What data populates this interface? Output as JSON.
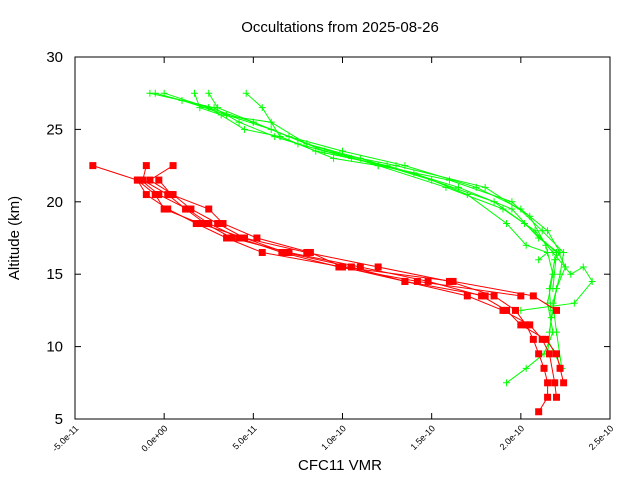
{
  "chart_data": {
    "type": "line",
    "title": "Occultations from 2025-08-26",
    "xlabel": "CFC11 VMR",
    "ylabel": "Altitude (km)",
    "xlim": [
      -5e-11,
      2.5e-10
    ],
    "ylim": [
      5,
      30
    ],
    "xticks": [
      {
        "value": -5e-11,
        "label": "-5.0e-11"
      },
      {
        "value": 0,
        "label": "0.0e+00"
      },
      {
        "value": 5e-11,
        "label": "5.0e-11"
      },
      {
        "value": 1e-10,
        "label": "1.0e-10"
      },
      {
        "value": 1.5e-10,
        "label": "1.5e-10"
      },
      {
        "value": 2e-10,
        "label": "2.0e-10"
      },
      {
        "value": 2.5e-10,
        "label": "2.5e-10"
      }
    ],
    "yticks": [
      5,
      10,
      15,
      20,
      25,
      30
    ],
    "grid": false,
    "legend": "none",
    "colors": {
      "red_series": "#ff0000",
      "green_series": "#00ff00"
    },
    "series": [
      {
        "color": "red",
        "marker": "square",
        "points": [
          [
            2.1e-10,
            5.5
          ],
          [
            2.15e-10,
            6.5
          ],
          [
            2.15e-10,
            7.5
          ],
          [
            2.13e-10,
            8.5
          ],
          [
            2.1e-10,
            9.5
          ],
          [
            2.07e-10,
            10.5
          ],
          [
            2.03e-10,
            11.5
          ],
          [
            1.97e-10,
            12.5
          ],
          [
            1.85e-10,
            13.5
          ],
          [
            1.6e-10,
            14.5
          ],
          [
            1.2e-10,
            15.5
          ],
          [
            8e-11,
            16.5
          ],
          [
            4.5e-11,
            17.5
          ],
          [
            3e-11,
            18.5
          ],
          [
            1.5e-11,
            19.5
          ],
          [
            5e-12,
            20.5
          ],
          [
            -8e-12,
            21.5
          ],
          [
            5e-12,
            22.5
          ]
        ]
      },
      {
        "color": "red",
        "marker": "square",
        "points": [
          [
            2.2e-10,
            6.5
          ],
          [
            2.19e-10,
            7.5
          ],
          [
            2.16e-10,
            9.5
          ],
          [
            2.12e-10,
            10.5
          ],
          [
            2.05e-10,
            11.5
          ],
          [
            1.9e-10,
            12.5
          ],
          [
            1.7e-10,
            13.5
          ],
          [
            1.35e-10,
            14.5
          ],
          [
            1.05e-10,
            15.5
          ],
          [
            6.8e-11,
            16.5
          ],
          [
            4.5e-11,
            17.5
          ],
          [
            2e-11,
            18.5
          ],
          [
            0,
            19.5
          ],
          [
            -5e-12,
            20.5
          ],
          [
            -1.5e-11,
            21.5
          ],
          [
            -4e-11,
            22.5
          ]
        ]
      },
      {
        "color": "red",
        "marker": "square",
        "points": [
          [
            2.22e-10,
            8.5
          ],
          [
            2.24e-10,
            7.5
          ],
          [
            2.2e-10,
            9.5
          ],
          [
            2.14e-10,
            10.5
          ],
          [
            2e-10,
            11.5
          ],
          [
            1.92e-10,
            12.5
          ],
          [
            1.78e-10,
            13.5
          ],
          [
            1.48e-10,
            14.5
          ],
          [
            1.1e-10,
            15.5
          ],
          [
            7e-11,
            16.5
          ],
          [
            3.8e-11,
            17.5
          ],
          [
            2.3e-11,
            18.5
          ],
          [
            1.2e-11,
            19.5
          ],
          [
            2e-12,
            20.5
          ],
          [
            -1.2e-11,
            21.5
          ],
          [
            -1e-11,
            22.5
          ]
        ]
      },
      {
        "color": "red",
        "marker": "square",
        "points": [
          [
            2.2e-10,
            12.5
          ],
          [
            2.07e-10,
            13.5
          ],
          [
            1.62e-10,
            14.5
          ],
          [
            1e-10,
            15.5
          ],
          [
            5.5e-11,
            16.5
          ],
          [
            3.5e-11,
            17.5
          ],
          [
            1.8e-11,
            18.5
          ],
          [
            2e-12,
            19.5
          ],
          [
            -1e-11,
            20.5
          ],
          [
            -1.5e-11,
            21.5
          ]
        ]
      },
      {
        "color": "red",
        "marker": "square",
        "points": [
          [
            2e-10,
            13.5
          ],
          [
            1.42e-10,
            14.5
          ],
          [
            9.8e-11,
            15.5
          ],
          [
            6.6e-11,
            16.5
          ],
          [
            4.2e-11,
            17.5
          ],
          [
            2.5e-11,
            18.5
          ],
          [
            1.3e-11,
            19.5
          ],
          [
            -3e-12,
            20.5
          ],
          [
            -1.3e-11,
            21.5
          ]
        ]
      },
      {
        "color": "red",
        "marker": "square",
        "points": [
          [
            1.8e-10,
            13.5
          ],
          [
            1.35e-10,
            14.5
          ],
          [
            1e-10,
            15.5
          ],
          [
            8.2e-11,
            16.5
          ],
          [
            5.2e-11,
            17.5
          ],
          [
            3.3e-11,
            18.5
          ],
          [
            2.5e-11,
            19.5
          ],
          [
            4e-12,
            20.5
          ],
          [
            -3e-12,
            21.5
          ]
        ]
      },
      {
        "color": "green",
        "marker": "plus",
        "points": [
          [
            1.92e-10,
            7.5
          ],
          [
            2.03e-10,
            8.5
          ],
          [
            2.13e-10,
            9.5
          ],
          [
            2.18e-10,
            11
          ],
          [
            2.15e-10,
            13
          ],
          [
            2.18e-10,
            15
          ],
          [
            2.14e-10,
            17
          ],
          [
            2.05e-10,
            19
          ],
          [
            1.8e-10,
            21
          ],
          [
            1.3e-10,
            22.5
          ],
          [
            9e-11,
            23.5
          ],
          [
            6e-11,
            25
          ],
          [
            3.5e-11,
            26
          ],
          [
            1e-11,
            27
          ],
          [
            -5e-12,
            27.5
          ]
        ]
      },
      {
        "color": "green",
        "marker": "plus",
        "points": [
          [
            2.15e-10,
            10.5
          ],
          [
            2.23e-10,
            8.5
          ],
          [
            2.2e-10,
            11
          ],
          [
            2.18e-10,
            13
          ],
          [
            2.22e-10,
            15
          ],
          [
            2.24e-10,
            16.5
          ],
          [
            2.12e-10,
            18
          ],
          [
            1.95e-10,
            20
          ],
          [
            1.6e-10,
            21.5
          ],
          [
            1.2e-10,
            22.5
          ],
          [
            8e-11,
            24
          ],
          [
            5e-11,
            25.5
          ],
          [
            2.5e-11,
            26.5
          ],
          [
            0,
            27.5
          ]
        ]
      },
      {
        "color": "green",
        "marker": "plus",
        "points": [
          [
            2.15e-10,
            9.5
          ],
          [
            2.17e-10,
            12
          ],
          [
            2.16e-10,
            14
          ],
          [
            2.19e-10,
            16
          ],
          [
            2.22e-10,
            16.5
          ],
          [
            2.15e-10,
            18
          ],
          [
            2e-10,
            19.5
          ],
          [
            1.75e-10,
            21
          ],
          [
            1.35e-10,
            22.5
          ],
          [
            1e-10,
            23.5
          ],
          [
            7e-11,
            24.5
          ],
          [
            5e-11,
            25.5
          ],
          [
            3e-11,
            26.5
          ],
          [
            2.5e-11,
            27.5
          ]
        ]
      },
      {
        "color": "green",
        "marker": "plus",
        "points": [
          [
            2e-10,
            12.5
          ],
          [
            2.3e-10,
            13
          ],
          [
            2.4e-10,
            14.5
          ],
          [
            2.35e-10,
            15.5
          ],
          [
            2.28e-10,
            15
          ],
          [
            2.18e-10,
            16.5
          ],
          [
            2.08e-10,
            18
          ],
          [
            1.9e-10,
            19.5
          ],
          [
            1.58e-10,
            21
          ],
          [
            1.2e-10,
            22.5
          ],
          [
            9.5e-11,
            23
          ],
          [
            6.5e-11,
            24.5
          ],
          [
            4.5e-11,
            25
          ],
          [
            2.5e-11,
            26.5
          ],
          [
            1e-11,
            27
          ]
        ]
      },
      {
        "color": "green",
        "marker": "plus",
        "points": [
          [
            2.16e-10,
            11
          ],
          [
            2.18e-10,
            12.5
          ],
          [
            2.2e-10,
            14
          ],
          [
            2.25e-10,
            15.5
          ],
          [
            2.21e-10,
            16.5
          ],
          [
            2.1e-10,
            17.5
          ],
          [
            1.95e-10,
            19.5
          ],
          [
            1.65e-10,
            21
          ],
          [
            1.25e-10,
            22.5
          ],
          [
            8.5e-11,
            23.5
          ],
          [
            6.5e-11,
            24.5
          ],
          [
            5.5e-11,
            26.5
          ],
          [
            4.6e-11,
            27.5
          ]
        ]
      },
      {
        "color": "green",
        "marker": "plus",
        "points": [
          [
            2.18e-10,
            14
          ],
          [
            2.2e-10,
            16.5
          ],
          [
            2.02e-10,
            18.5
          ],
          [
            1.85e-10,
            20
          ],
          [
            1.5e-10,
            21.5
          ],
          [
            1.1e-10,
            23
          ],
          [
            8e-11,
            24
          ],
          [
            6e-11,
            25.5
          ],
          [
            3.2e-11,
            26
          ],
          [
            2e-11,
            26.5
          ],
          [
            1.7e-11,
            27.5
          ]
        ]
      },
      {
        "color": "green",
        "marker": "plus",
        "points": [
          [
            2.1e-10,
            16
          ],
          [
            2.15e-10,
            16.5
          ],
          [
            2.03e-10,
            17
          ],
          [
            1.92e-10,
            18.5
          ],
          [
            1.7e-10,
            20.5
          ],
          [
            1.4e-10,
            22
          ],
          [
            1.05e-10,
            23
          ],
          [
            7.5e-11,
            24
          ],
          [
            6.2e-11,
            24.5
          ],
          [
            4.2e-11,
            25.5
          ],
          [
            2.8e-11,
            26.5
          ],
          [
            -8e-12,
            27.5
          ]
        ]
      }
    ]
  }
}
